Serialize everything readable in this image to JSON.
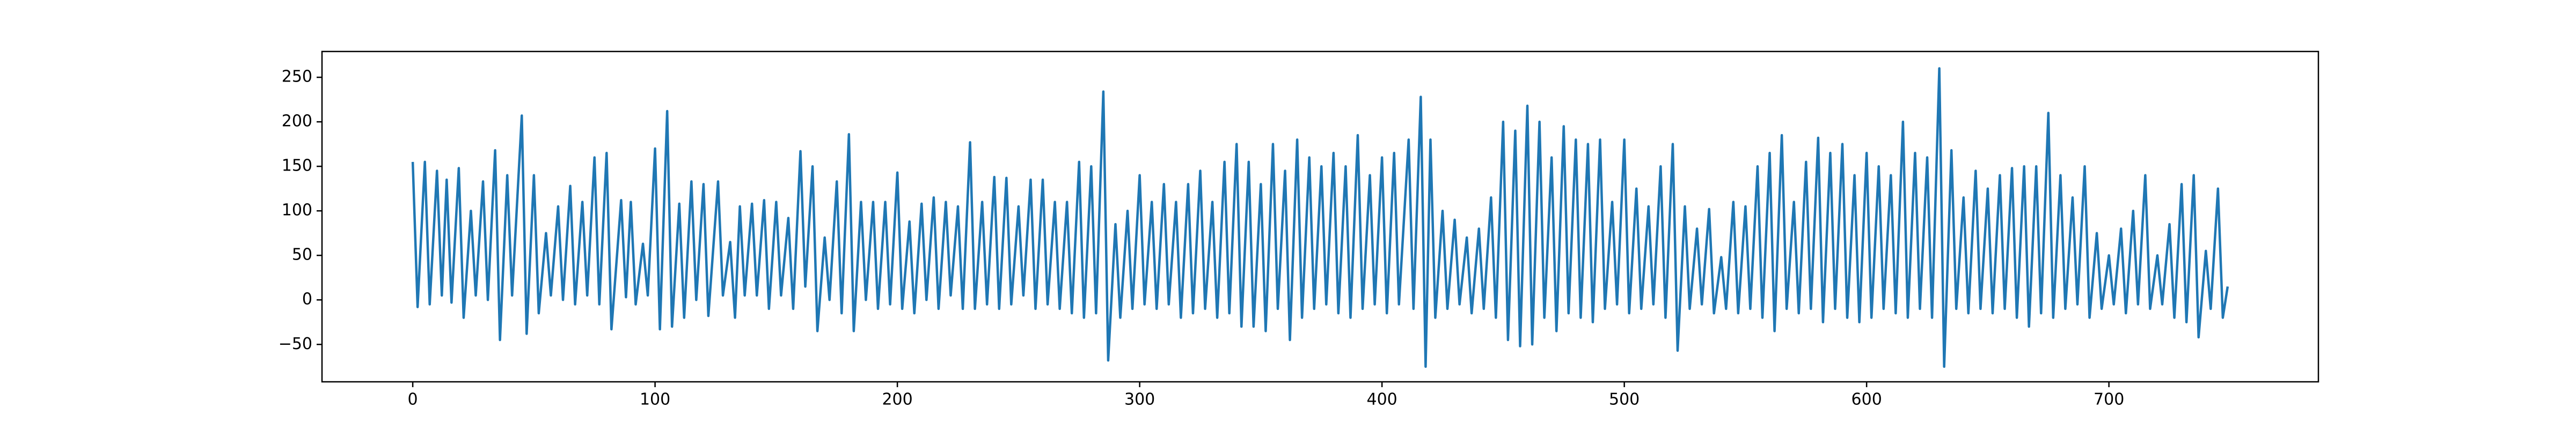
{
  "chart_data": {
    "type": "line",
    "x": [
      0,
      2,
      5,
      7,
      10,
      12,
      14,
      16,
      19,
      21,
      24,
      26,
      29,
      31,
      34,
      36,
      39,
      41,
      45,
      47,
      50,
      52,
      55,
      57,
      60,
      62,
      65,
      67,
      70,
      72,
      75,
      77,
      80,
      82,
      86,
      88,
      90,
      92,
      95,
      97,
      100,
      102,
      105,
      107,
      110,
      112,
      115,
      117,
      120,
      122,
      126,
      128,
      131,
      133,
      135,
      137,
      140,
      142,
      145,
      147,
      150,
      152,
      155,
      157,
      160,
      162,
      165,
      167,
      170,
      172,
      175,
      177,
      180,
      182,
      185,
      187,
      190,
      192,
      195,
      197,
      200,
      202,
      205,
      207,
      210,
      212,
      215,
      217,
      220,
      222,
      225,
      227,
      230,
      232,
      235,
      237,
      240,
      242,
      245,
      247,
      250,
      252,
      255,
      257,
      260,
      262,
      265,
      267,
      270,
      272,
      275,
      277,
      280,
      282,
      285,
      287,
      290,
      292,
      295,
      297,
      300,
      302,
      305,
      307,
      310,
      312,
      315,
      317,
      320,
      322,
      325,
      327,
      330,
      332,
      335,
      337,
      340,
      342,
      345,
      347,
      350,
      352,
      355,
      357,
      360,
      362,
      365,
      367,
      370,
      372,
      375,
      377,
      380,
      382,
      385,
      387,
      390,
      392,
      395,
      397,
      400,
      402,
      405,
      407,
      411,
      413,
      416,
      418,
      420,
      422,
      425,
      427,
      430,
      432,
      435,
      437,
      440,
      442,
      445,
      447,
      450,
      452,
      455,
      457,
      460,
      462,
      465,
      467,
      470,
      472,
      475,
      477,
      480,
      482,
      485,
      487,
      490,
      492,
      495,
      497,
      500,
      502,
      505,
      507,
      510,
      512,
      515,
      517,
      520,
      522,
      525,
      527,
      530,
      532,
      535,
      537,
      540,
      542,
      545,
      547,
      550,
      552,
      555,
      557,
      560,
      562,
      565,
      567,
      570,
      572,
      575,
      577,
      580,
      582,
      585,
      587,
      590,
      592,
      595,
      597,
      600,
      602,
      605,
      607,
      610,
      612,
      615,
      617,
      620,
      622,
      625,
      627,
      630,
      632,
      635,
      637,
      640,
      642,
      645,
      647,
      650,
      652,
      655,
      657,
      660,
      662,
      665,
      667,
      670,
      672,
      675,
      677,
      680,
      682,
      685,
      687,
      690,
      692,
      695,
      697,
      700,
      702,
      705,
      707,
      710,
      712,
      715,
      717,
      720,
      722,
      725,
      727,
      730,
      732,
      735,
      737,
      740,
      742,
      745,
      747,
      749
    ],
    "series": [
      {
        "color": "#1f77b4",
        "values": [
          155,
          -8,
          155,
          -5,
          145,
          5,
          135,
          -3,
          148,
          -20,
          100,
          5,
          133,
          0,
          168,
          -45,
          140,
          5,
          207,
          -38,
          140,
          -15,
          75,
          5,
          105,
          0,
          128,
          -5,
          110,
          5,
          160,
          -5,
          165,
          -33,
          112,
          3,
          110,
          -5,
          63,
          5,
          170,
          -33,
          212,
          -30,
          108,
          -20,
          133,
          0,
          130,
          -18,
          133,
          5,
          65,
          -20,
          105,
          5,
          108,
          5,
          112,
          -10,
          110,
          5,
          92,
          -10,
          167,
          15,
          150,
          -35,
          70,
          0,
          133,
          -15,
          186,
          -35,
          110,
          0,
          110,
          -10,
          110,
          -5,
          143,
          -10,
          88,
          -15,
          108,
          0,
          115,
          -10,
          110,
          5,
          105,
          -10,
          177,
          -10,
          110,
          -5,
          138,
          -10,
          137,
          -5,
          105,
          5,
          135,
          -10,
          135,
          -5,
          110,
          -10,
          110,
          -15,
          155,
          -20,
          150,
          -15,
          234,
          -68,
          85,
          -20,
          100,
          -10,
          140,
          -5,
          110,
          -10,
          130,
          -5,
          110,
          -20,
          130,
          -15,
          145,
          -10,
          110,
          -20,
          155,
          -15,
          175,
          -30,
          155,
          -30,
          130,
          -35,
          175,
          -10,
          145,
          -45,
          180,
          -20,
          160,
          -10,
          150,
          -5,
          165,
          -15,
          150,
          -20,
          185,
          -10,
          140,
          -5,
          160,
          -15,
          165,
          -5,
          180,
          -10,
          228,
          -75,
          180,
          -20,
          100,
          -10,
          90,
          -5,
          70,
          -15,
          80,
          -10,
          115,
          -20,
          200,
          -45,
          190,
          -52,
          218,
          -50,
          200,
          -20,
          160,
          -35,
          195,
          -15,
          180,
          -20,
          175,
          -25,
          180,
          -10,
          110,
          -5,
          180,
          -15,
          125,
          -10,
          105,
          -5,
          150,
          -20,
          175,
          -57,
          105,
          -10,
          80,
          -5,
          102,
          -15,
          48,
          -10,
          110,
          -15,
          105,
          -10,
          150,
          -20,
          165,
          -35,
          185,
          -10,
          110,
          -15,
          155,
          -10,
          182,
          -25,
          165,
          -10,
          175,
          -20,
          140,
          -25,
          165,
          -20,
          150,
          -10,
          140,
          -15,
          200,
          -20,
          165,
          -10,
          160,
          -20,
          260,
          -75,
          168,
          -10,
          115,
          -15,
          145,
          -10,
          125,
          -15,
          140,
          -10,
          148,
          -20,
          150,
          -30,
          150,
          -15,
          210,
          -20,
          140,
          -10,
          115,
          -5,
          150,
          -20,
          75,
          -10,
          50,
          -5,
          80,
          -15,
          100,
          -5,
          140,
          -10,
          50,
          -5,
          85,
          -20,
          130,
          -25,
          140,
          -42,
          55,
          -10,
          125,
          -20,
          15
        ]
      }
    ],
    "xlim": [
      -37.45,
      786.45
    ],
    "ylim": [
      -92,
      279
    ],
    "xticks": [
      0,
      100,
      200,
      300,
      400,
      500,
      600,
      700
    ],
    "yticks": [
      {
        "value": -50,
        "label": "−50"
      },
      0,
      50,
      100,
      150,
      200,
      250
    ]
  }
}
